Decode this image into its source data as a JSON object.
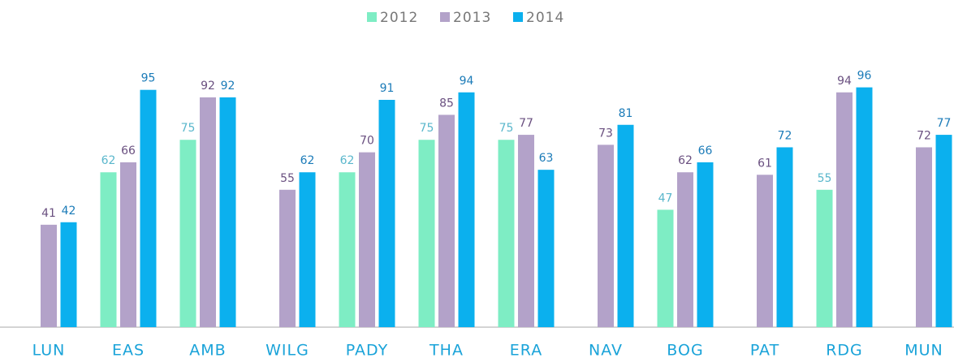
{
  "chart_data": {
    "type": "bar",
    "categories": [
      "LUN",
      "EAS",
      "AMB",
      "WILG",
      "PADY",
      "THA",
      "ERA",
      "NAV",
      "BOG",
      "PAT",
      "RDG",
      "MUN"
    ],
    "series": [
      {
        "name": "2012",
        "color": "#7eedc4",
        "label_color": "#5ab7cc",
        "values": [
          null,
          62,
          75,
          null,
          62,
          75,
          75,
          null,
          47,
          null,
          55,
          null
        ]
      },
      {
        "name": "2013",
        "color": "#b3a2c9",
        "label_color": "#6a5080",
        "values": [
          41,
          66,
          92,
          55,
          70,
          85,
          77,
          73,
          62,
          61,
          94,
          72
        ]
      },
      {
        "name": "2014",
        "color": "#0bb0ee",
        "label_color": "#1b7bb8",
        "values": [
          42,
          95,
          92,
          62,
          91,
          94,
          63,
          81,
          66,
          72,
          96,
          77
        ]
      }
    ],
    "ylim": [
      0,
      130
    ],
    "legend": "top"
  }
}
